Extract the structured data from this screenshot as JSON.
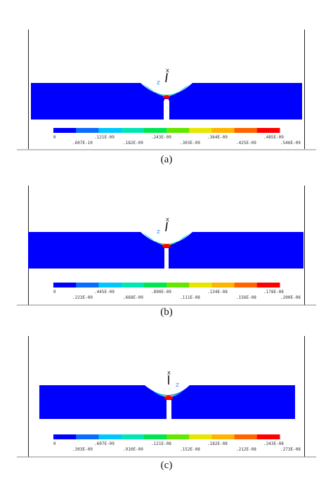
{
  "figures": [
    {
      "caption": "(a)",
      "legend_colors": [
        "#0000ff",
        "#0a6cff",
        "#00c8ff",
        "#00e6b4",
        "#00e650",
        "#64e600",
        "#e6e600",
        "#ffb400",
        "#ff6400",
        "#ff0000"
      ],
      "ticks_top": [
        "0",
        ".121E-09",
        ".243E-09",
        ".364E-09",
        ".485E-09"
      ],
      "ticks_bottom": [
        ".607E-10",
        ".182E-09",
        ".303E-09",
        ".425E-09",
        ".546E-09"
      ],
      "axis_x": "X",
      "axis_z": "Z"
    },
    {
      "caption": "(b)",
      "legend_colors": [
        "#0000ff",
        "#0a6cff",
        "#00c8ff",
        "#00e6b4",
        "#00e650",
        "#64e600",
        "#e6e600",
        "#ffb400",
        "#ff6400",
        "#ff0000"
      ],
      "ticks_top": [
        "0",
        ".445E-09",
        ".890E-09",
        ".134E-08",
        ".178E-08"
      ],
      "ticks_bottom": [
        ".223E-09",
        ".668E-09",
        ".111E-08",
        ".156E-08",
        ".200E-08"
      ],
      "axis_x": "X",
      "axis_z": "Z"
    },
    {
      "caption": "(c)",
      "legend_colors": [
        "#0000ff",
        "#0a6cff",
        "#00c8ff",
        "#00e6b4",
        "#00e650",
        "#64e600",
        "#e6e600",
        "#ffb400",
        "#ff6400",
        "#ff0000"
      ],
      "ticks_top": [
        "0",
        ".607E-09",
        ".121E-08",
        ".182E-08",
        ".243E-08"
      ],
      "ticks_bottom": [
        ".303E-09",
        ".910E-09",
        ".152E-08",
        ".212E-08",
        ".273E-08"
      ],
      "axis_x": "X",
      "axis_z": "Z"
    }
  ]
}
